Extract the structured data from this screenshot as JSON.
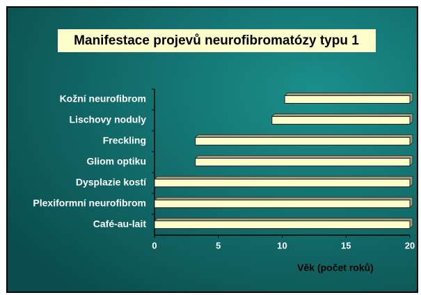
{
  "chart_data": {
    "type": "range-bar",
    "title": "Manifestace projevů neurofibromatózy typu 1",
    "x_label": "Věk (počet roků)",
    "categories": [
      "Kožní neurofibrom",
      "Lischovy noduly",
      "Freckling",
      "Gliom optiku",
      "Dysplazie kostí",
      "Plexiformní neurofibrom",
      "Café-au-lait"
    ],
    "starts": [
      10.2,
      9.2,
      3.2,
      3.2,
      0,
      0,
      0
    ],
    "ends": [
      20,
      20,
      20,
      20,
      20,
      20,
      20
    ],
    "color": "#ffffcc",
    "xlim": [
      0,
      20
    ],
    "xticks": [
      0,
      5,
      10,
      15,
      20
    ],
    "grid": false
  }
}
